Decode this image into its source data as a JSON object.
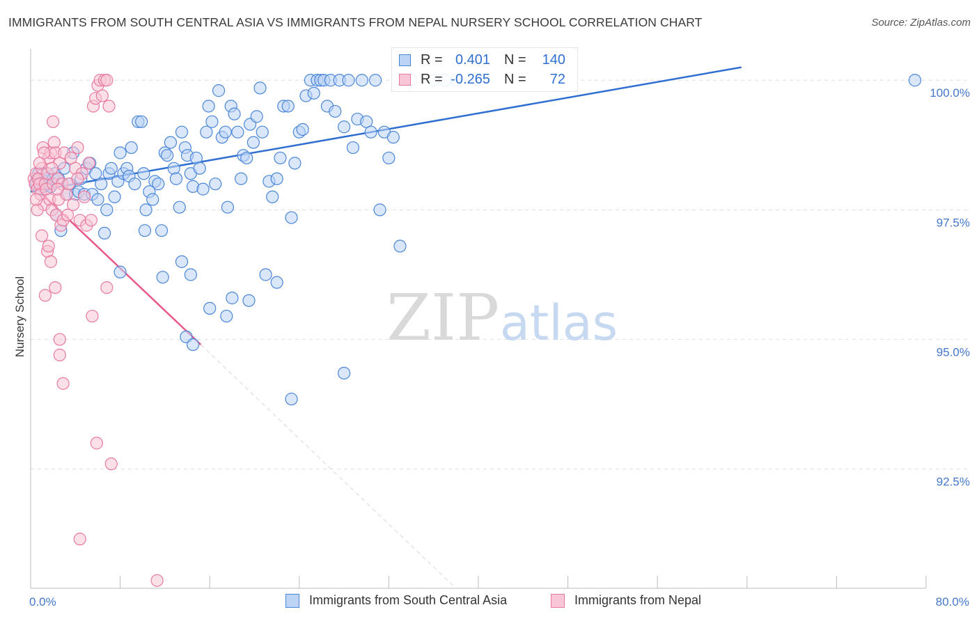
{
  "header": {
    "title": "IMMIGRANTS FROM SOUTH CENTRAL ASIA VS IMMIGRANTS FROM NEPAL NURSERY SCHOOL CORRELATION CHART",
    "source": "Source: ZipAtlas.com"
  },
  "watermark": {
    "zip": "ZIP",
    "atlas": "atlas"
  },
  "legend": {
    "r_label": "R =",
    "n_label": "N =",
    "blue": {
      "r": "0.401",
      "n": "140"
    },
    "pink": {
      "r": "-0.265",
      "n": "72"
    }
  },
  "colors": {
    "blue": "#4a86d8",
    "blue_fill": "#bcd4f5",
    "blue_line": "#2f6fd1",
    "pink": "#e87aa0",
    "pink_fill": "#f8c6d6",
    "pink_line": "#e8588a",
    "axis_text": "#4477cc",
    "grid": "#dddddd"
  },
  "chart_data": {
    "type": "scatter",
    "title": "IMMIGRANTS FROM SOUTH CENTRAL ASIA VS IMMIGRANTS FROM NEPAL NURSERY SCHOOL CORRELATION CHART",
    "xlabel": "",
    "ylabel": "Nursery School",
    "xlim": [
      0,
      80
    ],
    "ylim": [
      90.2,
      100.5
    ],
    "x_tick_labels": [
      {
        "value": 0,
        "label": "0.0%"
      },
      {
        "value": 80,
        "label": "80.0%"
      }
    ],
    "y_tick_labels": [
      {
        "value": 100,
        "label": "100.0%"
      },
      {
        "value": 97.5,
        "label": "97.5%"
      },
      {
        "value": 95,
        "label": "95.0%"
      },
      {
        "value": 92.5,
        "label": "92.5%"
      }
    ],
    "x_minor_ticks": [
      8,
      16,
      24,
      32,
      40,
      48,
      56,
      64,
      72,
      80
    ],
    "series": [
      {
        "name": "Immigrants from South Central Asia",
        "color": "#4a86d8",
        "r": 0.401,
        "n": 140,
        "trend": {
          "x": [
            0,
            63.5
          ],
          "y": [
            97.85,
            100.25
          ]
        },
        "points": [
          [
            0.5,
            98.0
          ],
          [
            0.6,
            98.1
          ],
          [
            0.7,
            98.2
          ],
          [
            0.8,
            97.9
          ],
          [
            0.9,
            98.1
          ],
          [
            1.0,
            98.0
          ],
          [
            1.1,
            98.2
          ],
          [
            1.2,
            97.95
          ],
          [
            1.3,
            98.1
          ],
          [
            1.4,
            98.05
          ],
          [
            1.5,
            98.2
          ],
          [
            1.6,
            98.0
          ],
          [
            1.8,
            97.95
          ],
          [
            2.0,
            98.1
          ],
          [
            2.2,
            98.2
          ],
          [
            2.3,
            97.4
          ],
          [
            2.5,
            98.1
          ],
          [
            2.7,
            97.1
          ],
          [
            3.0,
            98.3
          ],
          [
            3.2,
            97.8
          ],
          [
            3.5,
            98.0
          ],
          [
            3.8,
            98.6
          ],
          [
            4.0,
            97.8
          ],
          [
            4.3,
            97.85
          ],
          [
            4.5,
            98.1
          ],
          [
            4.8,
            97.8
          ],
          [
            5.0,
            98.3
          ],
          [
            5.3,
            98.4
          ],
          [
            5.5,
            97.8
          ],
          [
            5.8,
            98.2
          ],
          [
            6.0,
            97.7
          ],
          [
            6.3,
            98.0
          ],
          [
            6.6,
            97.05
          ],
          [
            6.8,
            97.5
          ],
          [
            7.0,
            98.2
          ],
          [
            7.2,
            98.3
          ],
          [
            7.5,
            97.75
          ],
          [
            7.8,
            98.05
          ],
          [
            8.0,
            98.6
          ],
          [
            8.3,
            98.2
          ],
          [
            8.6,
            98.3
          ],
          [
            8.8,
            98.15
          ],
          [
            9.0,
            98.7
          ],
          [
            9.3,
            98.0
          ],
          [
            9.6,
            99.2
          ],
          [
            9.9,
            99.2
          ],
          [
            10.1,
            98.2
          ],
          [
            10.3,
            97.5
          ],
          [
            10.6,
            97.85
          ],
          [
            10.9,
            97.7
          ],
          [
            11.1,
            98.05
          ],
          [
            11.4,
            98.0
          ],
          [
            11.7,
            97.1
          ],
          [
            12.0,
            98.6
          ],
          [
            12.2,
            98.55
          ],
          [
            12.5,
            98.8
          ],
          [
            12.8,
            98.3
          ],
          [
            13.0,
            98.1
          ],
          [
            13.3,
            97.55
          ],
          [
            13.5,
            99.0
          ],
          [
            13.8,
            98.7
          ],
          [
            14.0,
            98.55
          ],
          [
            14.3,
            98.2
          ],
          [
            14.5,
            97.95
          ],
          [
            14.8,
            98.5
          ],
          [
            15.1,
            98.3
          ],
          [
            15.4,
            97.9
          ],
          [
            15.7,
            99.0
          ],
          [
            15.9,
            99.5
          ],
          [
            16.2,
            99.2
          ],
          [
            16.5,
            98.0
          ],
          [
            16.8,
            99.8
          ],
          [
            17.1,
            98.9
          ],
          [
            17.4,
            99.0
          ],
          [
            17.6,
            97.55
          ],
          [
            17.9,
            99.5
          ],
          [
            18.2,
            99.35
          ],
          [
            18.5,
            99.0
          ],
          [
            18.8,
            98.1
          ],
          [
            19.0,
            98.55
          ],
          [
            19.3,
            98.5
          ],
          [
            19.6,
            99.15
          ],
          [
            19.9,
            98.8
          ],
          [
            20.2,
            99.3
          ],
          [
            20.5,
            99.85
          ],
          [
            20.7,
            99.0
          ],
          [
            21.0,
            96.25
          ],
          [
            21.3,
            98.05
          ],
          [
            21.6,
            97.75
          ],
          [
            22.0,
            98.1
          ],
          [
            22.3,
            98.5
          ],
          [
            22.6,
            99.5
          ],
          [
            23.0,
            99.5
          ],
          [
            23.3,
            97.35
          ],
          [
            23.6,
            98.4
          ],
          [
            24.0,
            99.0
          ],
          [
            24.3,
            99.05
          ],
          [
            24.6,
            99.7
          ],
          [
            25.0,
            100.0
          ],
          [
            25.3,
            99.75
          ],
          [
            25.6,
            100.0
          ],
          [
            25.9,
            100.0
          ],
          [
            26.2,
            100.0
          ],
          [
            26.5,
            99.5
          ],
          [
            26.8,
            100.0
          ],
          [
            27.2,
            99.4
          ],
          [
            27.6,
            100.0
          ],
          [
            28.0,
            99.1
          ],
          [
            28.4,
            100.0
          ],
          [
            28.8,
            98.7
          ],
          [
            29.2,
            99.25
          ],
          [
            29.6,
            100.0
          ],
          [
            30.0,
            99.2
          ],
          [
            30.4,
            99.0
          ],
          [
            30.8,
            100.0
          ],
          [
            31.2,
            97.5
          ],
          [
            31.6,
            99.0
          ],
          [
            32.0,
            98.5
          ],
          [
            32.4,
            98.9
          ],
          [
            33.0,
            96.8
          ],
          [
            34.0,
            100.0
          ],
          [
            36.0,
            100.0
          ],
          [
            37.0,
            100.0
          ],
          [
            38.0,
            100.0
          ],
          [
            40.0,
            100.0
          ],
          [
            79.0,
            100.0
          ],
          [
            8.0,
            96.3
          ],
          [
            10.2,
            97.1
          ],
          [
            11.8,
            96.2
          ],
          [
            14.3,
            96.25
          ],
          [
            16.0,
            95.6
          ],
          [
            17.5,
            95.45
          ],
          [
            13.9,
            95.05
          ],
          [
            14.5,
            94.9
          ],
          [
            23.3,
            93.85
          ],
          [
            13.5,
            96.5
          ],
          [
            18.0,
            95.8
          ],
          [
            22.0,
            96.1
          ],
          [
            19.5,
            95.75
          ],
          [
            28.0,
            94.35
          ]
        ]
      },
      {
        "name": "Immigrants from Nepal",
        "color": "#e87aa0",
        "r": -0.265,
        "n": 72,
        "trend": {
          "x": [
            0.3,
            15.2
          ],
          "y": [
            97.95,
            94.9
          ]
        },
        "trend_dashed": {
          "x": [
            15.2,
            38.0
          ],
          "y": [
            94.9,
            90.2
          ]
        },
        "points": [
          [
            0.3,
            98.1
          ],
          [
            0.4,
            98.0
          ],
          [
            0.5,
            98.2
          ],
          [
            0.6,
            97.9
          ],
          [
            0.7,
            98.1
          ],
          [
            0.8,
            98.0
          ],
          [
            0.9,
            97.8
          ],
          [
            1.0,
            98.3
          ],
          [
            1.1,
            98.7
          ],
          [
            1.2,
            97.6
          ],
          [
            1.3,
            98.0
          ],
          [
            1.4,
            97.9
          ],
          [
            1.5,
            98.2
          ],
          [
            1.6,
            98.5
          ],
          [
            1.7,
            97.7
          ],
          [
            1.8,
            98.6
          ],
          [
            1.9,
            97.5
          ],
          [
            2.0,
            98.0
          ],
          [
            2.1,
            98.8
          ],
          [
            2.2,
            98.6
          ],
          [
            2.3,
            97.4
          ],
          [
            2.4,
            98.1
          ],
          [
            2.5,
            97.7
          ],
          [
            2.6,
            98.4
          ],
          [
            2.7,
            97.2
          ],
          [
            2.8,
            98.0
          ],
          [
            2.9,
            97.3
          ],
          [
            3.0,
            98.6
          ],
          [
            3.2,
            97.8
          ],
          [
            3.4,
            98.0
          ],
          [
            3.6,
            98.5
          ],
          [
            3.8,
            97.6
          ],
          [
            4.0,
            98.3
          ],
          [
            4.2,
            98.7
          ],
          [
            4.4,
            97.3
          ],
          [
            4.6,
            98.2
          ],
          [
            4.8,
            97.75
          ],
          [
            5.0,
            97.2
          ],
          [
            5.2,
            98.4
          ],
          [
            5.4,
            97.3
          ],
          [
            5.6,
            99.5
          ],
          [
            5.8,
            99.65
          ],
          [
            6.0,
            99.9
          ],
          [
            6.2,
            100.0
          ],
          [
            6.4,
            99.7
          ],
          [
            6.6,
            100.0
          ],
          [
            6.8,
            100.0
          ],
          [
            7.0,
            99.5
          ],
          [
            2.0,
            99.2
          ],
          [
            1.5,
            96.7
          ],
          [
            1.8,
            96.5
          ],
          [
            2.2,
            96.0
          ],
          [
            1.3,
            95.85
          ],
          [
            6.8,
            96.0
          ],
          [
            2.6,
            95.0
          ],
          [
            2.6,
            94.7
          ],
          [
            2.9,
            94.15
          ],
          [
            5.5,
            95.45
          ],
          [
            5.9,
            93.0
          ],
          [
            7.2,
            92.6
          ],
          [
            4.4,
            91.15
          ],
          [
            11.3,
            90.35
          ],
          [
            0.6,
            97.5
          ],
          [
            1.0,
            97.0
          ],
          [
            1.6,
            96.8
          ],
          [
            3.3,
            97.4
          ],
          [
            4.2,
            98.1
          ],
          [
            0.8,
            98.4
          ],
          [
            1.2,
            98.6
          ],
          [
            0.5,
            97.7
          ],
          [
            1.9,
            98.3
          ],
          [
            2.4,
            97.9
          ]
        ]
      }
    ]
  },
  "bottom_legend": {
    "blue_label": "Immigrants from South Central Asia",
    "pink_label": "Immigrants from Nepal"
  }
}
